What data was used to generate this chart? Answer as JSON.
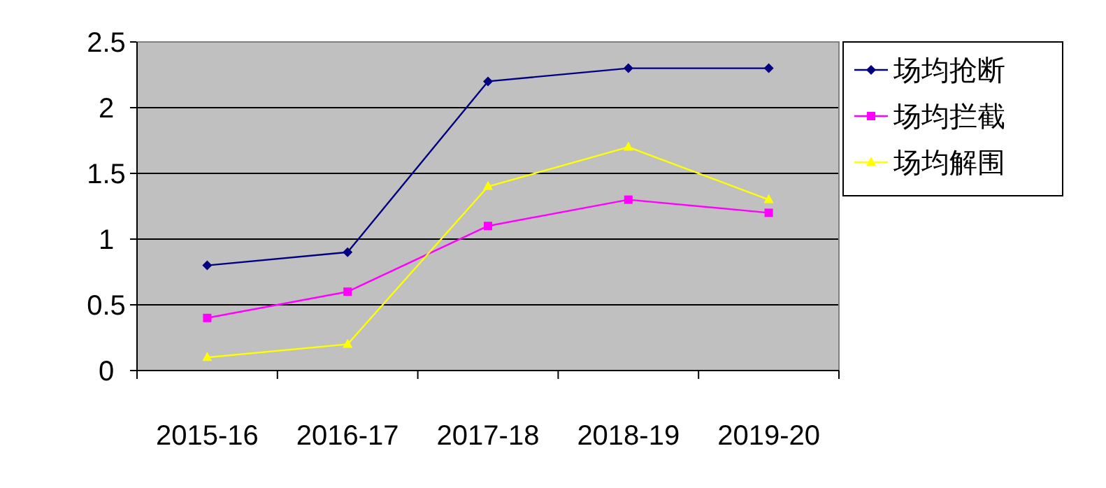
{
  "chart_data": {
    "type": "line",
    "categories": [
      "2015-16",
      "2016-17",
      "2017-18",
      "2018-19",
      "2019-20"
    ],
    "ylim": [
      0,
      2.5
    ],
    "yticks": [
      0,
      0.5,
      1,
      1.5,
      2,
      2.5
    ],
    "grid": "y",
    "legend": "right",
    "series": [
      {
        "name": "场均抢断",
        "color": "#000080",
        "marker": "diamond",
        "values": [
          0.8,
          0.9,
          2.2,
          2.3,
          2.3
        ]
      },
      {
        "name": "场均拦截",
        "color": "#ff00ff",
        "marker": "square",
        "values": [
          0.4,
          0.6,
          1.1,
          1.3,
          1.2
        ]
      },
      {
        "name": "场均解围",
        "color": "#ffff00",
        "marker": "triangle",
        "values": [
          0.1,
          0.2,
          1.4,
          1.7,
          1.3
        ]
      }
    ]
  }
}
